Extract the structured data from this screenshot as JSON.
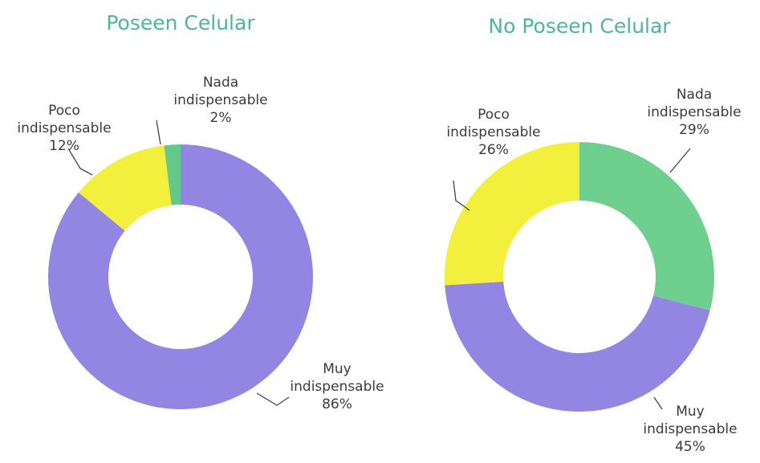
{
  "chart_data": [
    {
      "type": "donut",
      "title": "Poseen Celular",
      "categories": [
        "Muy indispensable",
        "Poco indispensable",
        "Nada indispensable"
      ],
      "values": [
        86,
        12,
        2
      ],
      "value_labels": [
        "86%",
        "12%",
        "2%"
      ],
      "colors": [
        "#9286e2",
        "#f2f03c",
        "#62c98a"
      ]
    },
    {
      "type": "donut",
      "title": "No Poseen Celular",
      "categories": [
        "Nada indispensable",
        "Muy indispensable",
        "Poco indispensable"
      ],
      "values": [
        29,
        45,
        26
      ],
      "value_labels": [
        "29%",
        "45%",
        "26%"
      ],
      "colors": [
        "#6fcf8e",
        "#9286e2",
        "#f2f03c"
      ]
    }
  ]
}
